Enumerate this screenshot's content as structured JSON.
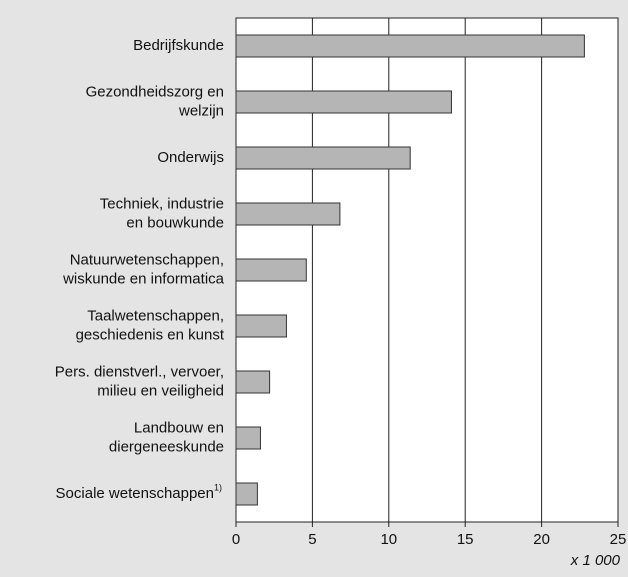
{
  "chart_data": {
    "type": "bar",
    "orientation": "horizontal",
    "categories": [
      [
        "Bedrijfskunde"
      ],
      [
        "Gezondheidszorg en",
        "welzijn"
      ],
      [
        "Onderwijs"
      ],
      [
        "Techniek, industrie",
        "en bouwkunde"
      ],
      [
        "Natuurwetenschappen,",
        "wiskunde en informatica"
      ],
      [
        "Taalwetenschappen,",
        "geschiedenis en kunst"
      ],
      [
        "Pers. dienstverl., vervoer,",
        "milieu en veiligheid"
      ],
      [
        "Landbouw en",
        "diergeneeskunde"
      ],
      [
        "Sociale wetenschappen"
      ]
    ],
    "category_notes": [
      null,
      null,
      null,
      null,
      null,
      null,
      null,
      null,
      "1)"
    ],
    "values": [
      22.8,
      14.1,
      11.4,
      6.8,
      4.6,
      3.3,
      2.2,
      1.6,
      1.4
    ],
    "color": "#b5b5b5",
    "xlim": [
      0,
      25
    ],
    "xticks": [
      0,
      5,
      10,
      15,
      20,
      25
    ],
    "x_unit_label": "x 1 000",
    "grid": true
  }
}
